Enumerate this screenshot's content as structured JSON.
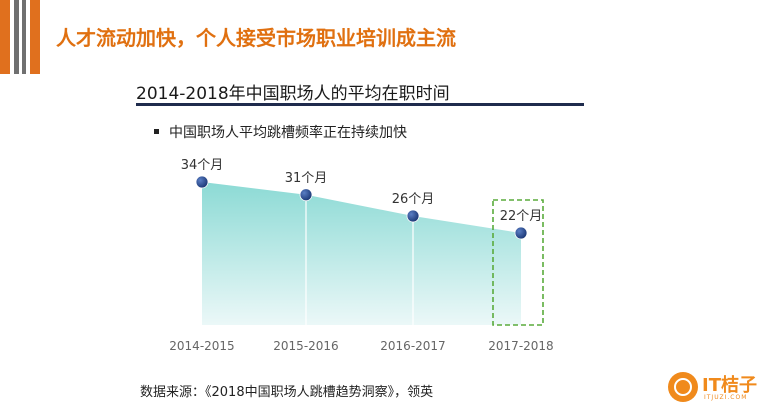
{
  "headline": "人才流动加快，个人接受市场职业培训成主流",
  "bullet": "中国职场人平均跳槽频率正在持续加快",
  "source": "数据来源：《2018中国职场人跳槽趋势洞察》，领英",
  "logo": {
    "text": "IT桔子",
    "sub": "ITJUZI.COM"
  },
  "colors": {
    "accent": "#e0701e",
    "area_top": "#7fd6d0",
    "area_bottom": "#e9f7f7",
    "marker": "#1d3a78",
    "highlight_box": "#5aab3c"
  },
  "chart_data": {
    "type": "area",
    "title": "2014-2018年中国职场人的平均在职时间",
    "categories": [
      "2014-2015",
      "2015-2016",
      "2016-2017",
      "2017-2018"
    ],
    "values": [
      34,
      31,
      26,
      22
    ],
    "data_labels": [
      "34个月",
      "31个月",
      "26个月",
      "22个月"
    ],
    "highlight_category": "2017-2018",
    "grid": false,
    "legend": "none"
  }
}
